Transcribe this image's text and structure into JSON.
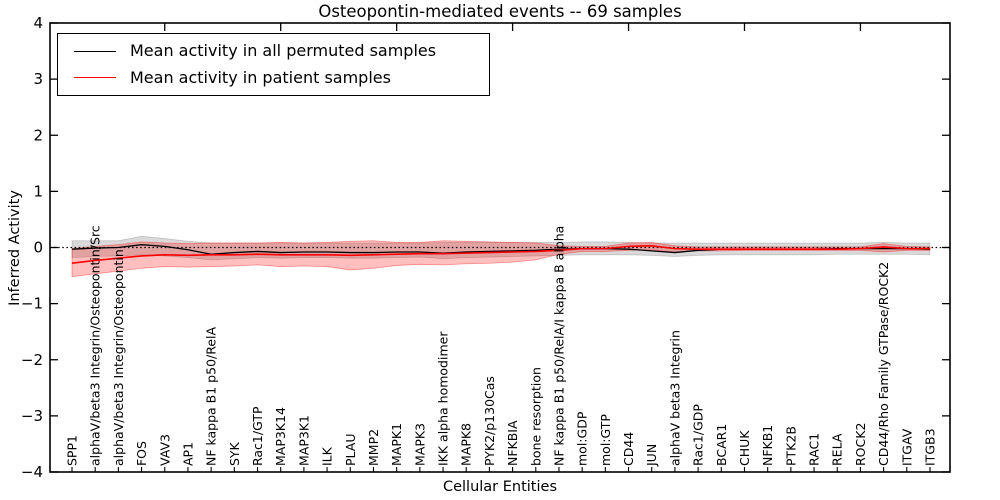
{
  "chart_data": {
    "type": "line",
    "title": "Osteopontin-mediated events -- 69 samples",
    "xlabel": "Cellular Entities",
    "ylabel": "Inferred Activity",
    "ylim": [
      -4,
      4
    ],
    "ytick_labels": [
      "4",
      "3",
      "2",
      "1",
      "0",
      "−1",
      "−2",
      "−3",
      "−4"
    ],
    "ytick_values": [
      4,
      3,
      2,
      1,
      0,
      -1,
      -2,
      -3,
      -4
    ],
    "top_tick_indices": [
      4,
      9,
      14,
      19,
      24,
      29,
      34
    ],
    "grid": false,
    "background": "#ffffff",
    "zero_line": {
      "y": 0,
      "style": "dotted",
      "color": "#000000"
    },
    "legend": {
      "position": "upper-left",
      "entries": [
        {
          "label": "Mean activity in all permuted samples",
          "color": "#000000"
        },
        {
          "label": "Mean activity in patient samples",
          "color": "#ff0000"
        }
      ]
    },
    "categories": [
      "SPP1",
      "alphaV/beta3 Integrin/Osteopontin/Src",
      "alphaV/beta3 Integrin/Osteopontin",
      "FOS",
      "VAV3",
      "AP1",
      "NF kappa B1 p50/RelA",
      "SYK",
      "Rac1/GTP",
      "MAP3K14",
      "MAP3K1",
      "ILK",
      "PLAU",
      "MMP2",
      "MAPK1",
      "MAPK3",
      "IKK alpha homodimer",
      "MAPK8",
      "PYK2/p130Cas",
      "NFKBIA",
      "bone resorption",
      "NF kappa B1 p50/RelA/I kappa B alpha",
      "mol:GDP",
      "mol:GTP",
      "CD44",
      "JUN",
      "alphaV beta3 Integrin",
      "Rac1/GDP",
      "BCAR1",
      "CHUK",
      "NFKB1",
      "PTK2B",
      "RAC1",
      "RELA",
      "ROCK2",
      "CD44/Rho Family GTPase/ROCK2",
      "ITGAV",
      "ITGB3"
    ],
    "series": [
      {
        "name": "Mean activity in all permuted samples",
        "color": "#000000",
        "band_color": "rgba(0,0,0,0.15)",
        "band_edge": "rgba(0,0,0,0.18)",
        "values": [
          -0.03,
          -0.01,
          0.0,
          0.05,
          0.02,
          -0.04,
          -0.12,
          -0.09,
          -0.07,
          -0.09,
          -0.08,
          -0.08,
          -0.09,
          -0.09,
          -0.08,
          -0.08,
          -0.1,
          -0.08,
          -0.07,
          -0.06,
          -0.05,
          -0.03,
          -0.02,
          -0.02,
          -0.03,
          -0.06,
          -0.09,
          -0.05,
          -0.03,
          -0.03,
          -0.03,
          -0.03,
          -0.03,
          -0.02,
          -0.02,
          -0.02,
          -0.02,
          -0.03
        ],
        "band_low": [
          -0.18,
          -0.16,
          -0.15,
          -0.13,
          -0.15,
          -0.18,
          -0.22,
          -0.2,
          -0.18,
          -0.19,
          -0.18,
          -0.18,
          -0.19,
          -0.19,
          -0.18,
          -0.17,
          -0.2,
          -0.18,
          -0.17,
          -0.16,
          -0.15,
          -0.14,
          -0.13,
          -0.13,
          -0.13,
          -0.14,
          -0.16,
          -0.14,
          -0.13,
          -0.13,
          -0.13,
          -0.13,
          -0.13,
          -0.12,
          -0.12,
          -0.12,
          -0.12,
          -0.13
        ],
        "band_high": [
          0.12,
          0.12,
          0.12,
          0.2,
          0.16,
          0.11,
          0.08,
          0.08,
          0.08,
          0.08,
          0.08,
          0.08,
          0.08,
          0.08,
          0.08,
          0.08,
          0.09,
          0.09,
          0.09,
          0.09,
          0.09,
          0.09,
          0.1,
          0.1,
          0.09,
          0.08,
          0.08,
          0.08,
          0.08,
          0.08,
          0.08,
          0.08,
          0.08,
          0.08,
          0.08,
          0.09,
          0.08,
          0.08
        ]
      },
      {
        "name": "Mean activity in patient samples",
        "color": "#ff0000",
        "band_color": "rgba(255,0,0,0.25)",
        "band_edge": "rgba(255,0,0,0.4)",
        "values": [
          -0.28,
          -0.23,
          -0.19,
          -0.15,
          -0.13,
          -0.14,
          -0.13,
          -0.13,
          -0.12,
          -0.13,
          -0.13,
          -0.13,
          -0.14,
          -0.13,
          -0.12,
          -0.11,
          -0.11,
          -0.1,
          -0.09,
          -0.08,
          -0.07,
          -0.05,
          -0.02,
          -0.02,
          0.02,
          0.03,
          -0.02,
          -0.03,
          -0.03,
          -0.03,
          -0.03,
          -0.03,
          -0.03,
          -0.03,
          -0.02,
          0.01,
          -0.02,
          -0.02
        ],
        "band_low": [
          -0.52,
          -0.47,
          -0.42,
          -0.37,
          -0.34,
          -0.35,
          -0.34,
          -0.33,
          -0.31,
          -0.34,
          -0.33,
          -0.34,
          -0.4,
          -0.37,
          -0.32,
          -0.3,
          -0.31,
          -0.29,
          -0.28,
          -0.26,
          -0.22,
          -0.12,
          -0.07,
          -0.07,
          -0.05,
          -0.04,
          -0.08,
          -0.06,
          -0.06,
          -0.05,
          -0.05,
          -0.05,
          -0.05,
          -0.05,
          -0.05,
          -0.08,
          -0.05,
          -0.05
        ],
        "band_high": [
          -0.02,
          0.02,
          0.05,
          0.1,
          0.08,
          0.07,
          0.08,
          0.08,
          0.08,
          0.09,
          0.08,
          0.09,
          0.11,
          0.12,
          0.09,
          0.09,
          0.12,
          0.11,
          0.1,
          0.09,
          0.08,
          0.03,
          0.02,
          0.02,
          0.08,
          0.09,
          0.03,
          0.01,
          0.01,
          0.01,
          0.01,
          0.01,
          0.01,
          0.01,
          0.01,
          0.07,
          0.02,
          0.01
        ]
      }
    ]
  }
}
